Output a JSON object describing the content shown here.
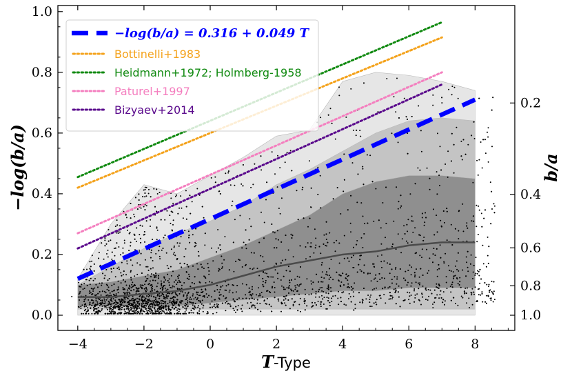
{
  "chart_data": {
    "type": "scatter",
    "xlabel_symbol": "T",
    "xlabel_rest": "-Type",
    "ylabel": "−log(b/a)",
    "ylabel_right": "b/a",
    "xlim": [
      -4.6,
      9.2
    ],
    "ylim": [
      -0.05,
      1.02
    ],
    "xticks": [
      -4,
      -2,
      0,
      2,
      4,
      6,
      8
    ],
    "xtick_labels": [
      "−4",
      "−2",
      "0",
      "2",
      "4",
      "6",
      "8"
    ],
    "yticks": [
      0.0,
      0.2,
      0.4,
      0.6,
      0.8,
      1.0
    ],
    "ytick_labels": [
      "0.0",
      "0.2",
      "0.4",
      "0.6",
      "0.8",
      "1.0"
    ],
    "right_ticks": [
      0.2,
      0.4,
      0.6,
      0.8,
      1.0
    ],
    "right_tick_labels": [
      "0.2",
      "0.4",
      "0.6",
      "0.8",
      "1.0"
    ],
    "fit": {
      "label": "−log(b/a) = 0.316 + 0.049 T",
      "intercept": 0.316,
      "slope": 0.049,
      "x": [
        -4,
        8
      ],
      "y": [
        0.12,
        0.71
      ],
      "color": "#0000ff"
    },
    "series": [
      {
        "name": "Bottinelli+1983",
        "color": "#f4a21b",
        "x": [
          -4,
          7
        ],
        "y": [
          0.42,
          0.915
        ]
      },
      {
        "name": "Heidmann+1972; Holmberg-1958",
        "color": "#118a11",
        "x": [
          -4,
          7
        ],
        "y": [
          0.455,
          0.965
        ]
      },
      {
        "name": "Paturel+1997",
        "color": "#f47fbf",
        "x": [
          -4,
          7
        ],
        "y": [
          0.27,
          0.8
        ]
      },
      {
        "name": "Bizyaev+2014",
        "color": "#5a0a8c",
        "x": [
          -4,
          7
        ],
        "y": [
          0.22,
          0.76
        ]
      }
    ],
    "median": {
      "x": [
        -4,
        -3,
        -2,
        -1,
        0,
        1,
        2,
        3,
        4,
        5,
        6,
        7,
        8
      ],
      "y": [
        0.06,
        0.06,
        0.07,
        0.08,
        0.1,
        0.13,
        0.16,
        0.18,
        0.2,
        0.21,
        0.23,
        0.24,
        0.24
      ]
    },
    "band_inner": {
      "x": [
        -4,
        -3,
        -2,
        -1,
        0,
        1,
        2,
        3,
        4,
        5,
        6,
        7,
        8
      ],
      "lower": [
        0.03,
        0.03,
        0.03,
        0.03,
        0.04,
        0.05,
        0.06,
        0.07,
        0.08,
        0.08,
        0.09,
        0.09,
        0.09
      ],
      "upper": [
        0.1,
        0.11,
        0.13,
        0.15,
        0.19,
        0.23,
        0.28,
        0.33,
        0.4,
        0.44,
        0.46,
        0.46,
        0.45
      ]
    },
    "band_mid": {
      "x": [
        -4,
        -3,
        -2,
        -1,
        0,
        1,
        2,
        3,
        4,
        5,
        6,
        7,
        8
      ],
      "lower": [
        0.02,
        0.02,
        0.02,
        0.02,
        0.02,
        0.02,
        0.02,
        0.02,
        0.02,
        0.02,
        0.02,
        0.02,
        0.02
      ],
      "upper": [
        0.1,
        0.16,
        0.22,
        0.27,
        0.31,
        0.36,
        0.43,
        0.48,
        0.54,
        0.6,
        0.64,
        0.65,
        0.64
      ]
    },
    "band_outer": {
      "x": [
        -4,
        -3,
        -2,
        -1,
        0,
        1,
        2,
        3,
        4,
        5,
        6,
        7,
        8
      ],
      "lower": [
        0.0,
        0.0,
        0.0,
        0.0,
        0.0,
        0.0,
        0.0,
        0.0,
        0.0,
        0.0,
        0.0,
        0.0,
        0.0
      ],
      "upper": [
        0.12,
        0.3,
        0.43,
        0.4,
        0.46,
        0.52,
        0.59,
        0.61,
        0.77,
        0.8,
        0.79,
        0.77,
        0.74
      ]
    }
  }
}
